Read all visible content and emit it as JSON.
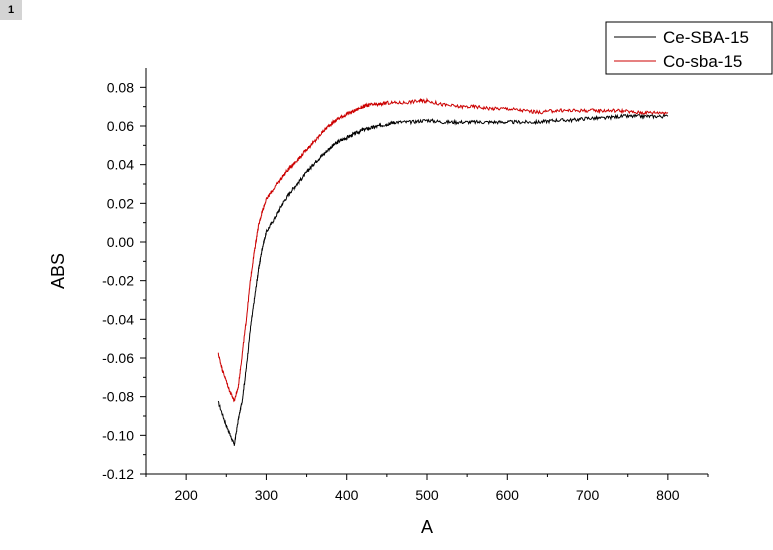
{
  "panel_badge": "1",
  "chart_data": {
    "type": "line",
    "xlabel": "A",
    "ylabel": "ABS",
    "xlim": [
      150,
      850
    ],
    "ylim": [
      -0.12,
      0.09
    ],
    "xticks": [
      200,
      300,
      400,
      500,
      600,
      700,
      800
    ],
    "yticks": [
      -0.12,
      -0.1,
      -0.08,
      -0.06,
      -0.04,
      -0.02,
      0.0,
      0.02,
      0.04,
      0.06,
      0.08
    ],
    "grid": false,
    "legend_position": "top-right",
    "series": [
      {
        "name": "Ce-SBA-15",
        "color": "#000000",
        "x": [
          240,
          250,
          255,
          260,
          265,
          270,
          275,
          280,
          285,
          290,
          295,
          300,
          310,
          320,
          330,
          340,
          350,
          360,
          370,
          380,
          390,
          400,
          410,
          420,
          430,
          440,
          450,
          460,
          480,
          500,
          520,
          540,
          560,
          580,
          600,
          620,
          640,
          660,
          680,
          700,
          720,
          740,
          760,
          780,
          800
        ],
        "y": [
          -0.083,
          -0.095,
          -0.1,
          -0.105,
          -0.092,
          -0.082,
          -0.065,
          -0.045,
          -0.03,
          -0.015,
          -0.003,
          0.005,
          0.012,
          0.02,
          0.026,
          0.031,
          0.036,
          0.041,
          0.045,
          0.049,
          0.052,
          0.054,
          0.056,
          0.058,
          0.059,
          0.06,
          0.061,
          0.062,
          0.062,
          0.063,
          0.062,
          0.062,
          0.062,
          0.062,
          0.062,
          0.062,
          0.062,
          0.063,
          0.063,
          0.064,
          0.064,
          0.065,
          0.065,
          0.065,
          0.065
        ]
      },
      {
        "name": "Co-sba-15",
        "color": "#cc0000",
        "x": [
          240,
          245,
          250,
          255,
          260,
          265,
          270,
          275,
          280,
          285,
          290,
          295,
          300,
          310,
          320,
          330,
          340,
          350,
          360,
          370,
          380,
          390,
          400,
          410,
          420,
          430,
          440,
          450,
          470,
          490,
          500,
          520,
          540,
          560,
          580,
          600,
          620,
          640,
          660,
          680,
          700,
          720,
          740,
          760,
          780,
          800
        ],
        "y": [
          -0.058,
          -0.066,
          -0.072,
          -0.078,
          -0.082,
          -0.075,
          -0.058,
          -0.04,
          -0.02,
          -0.005,
          0.008,
          0.016,
          0.022,
          0.028,
          0.034,
          0.039,
          0.043,
          0.048,
          0.052,
          0.057,
          0.061,
          0.064,
          0.066,
          0.068,
          0.07,
          0.071,
          0.071,
          0.072,
          0.072,
          0.073,
          0.073,
          0.071,
          0.07,
          0.07,
          0.069,
          0.069,
          0.068,
          0.067,
          0.068,
          0.068,
          0.068,
          0.068,
          0.068,
          0.067,
          0.067,
          0.067
        ]
      }
    ]
  }
}
